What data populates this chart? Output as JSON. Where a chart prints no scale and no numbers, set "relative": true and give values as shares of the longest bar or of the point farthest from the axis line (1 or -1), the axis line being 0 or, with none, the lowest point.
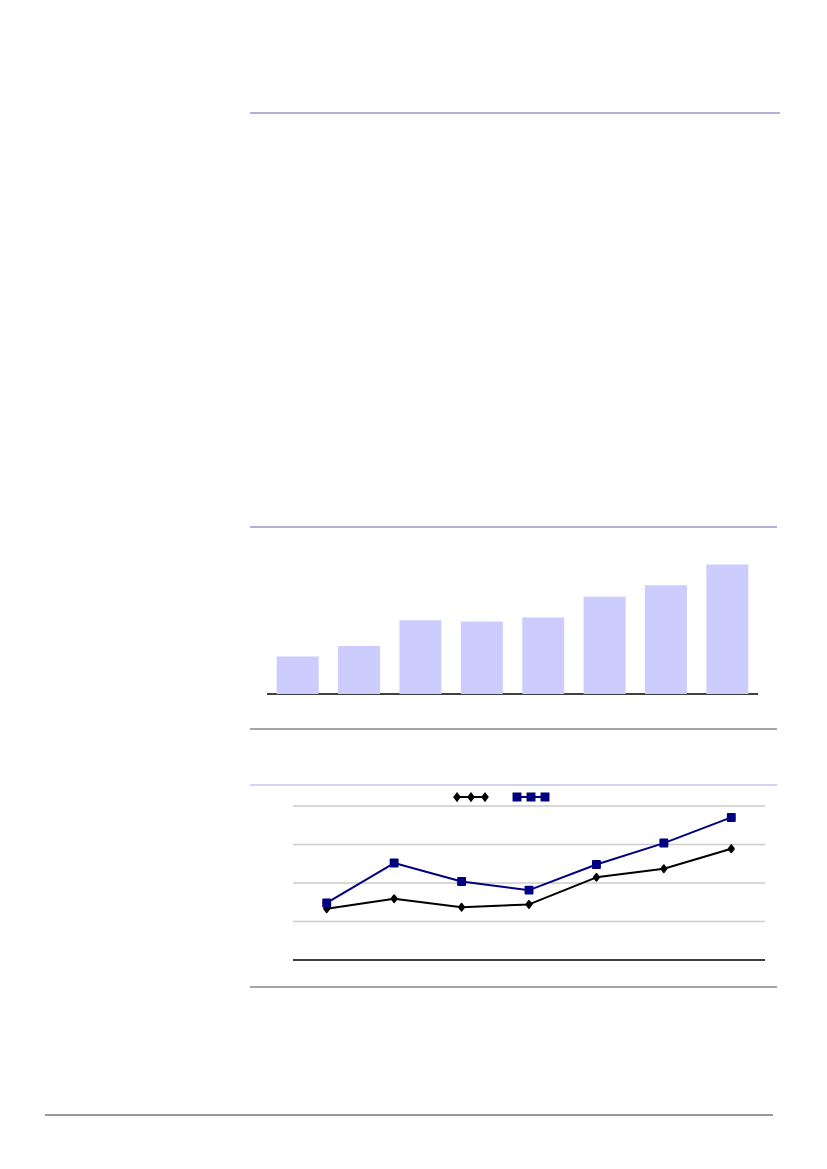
{
  "chart_data": [
    {
      "type": "bar",
      "relative": true,
      "categories": [
        null,
        null,
        null,
        null,
        null,
        null,
        null,
        null
      ],
      "values": [
        0.29,
        0.37,
        0.57,
        0.56,
        0.59,
        0.75,
        0.84,
        1.0
      ],
      "color": "#ccccff"
    },
    {
      "type": "line",
      "relative": true,
      "categories": [
        null,
        null,
        null,
        null,
        null,
        null,
        null
      ],
      "grid": "y",
      "series": [
        {
          "color": "#000000",
          "marker": "diamond",
          "values": [
            0.36,
            0.43,
            0.37,
            0.39,
            0.58,
            0.64,
            0.78
          ]
        },
        {
          "color": "#000080",
          "marker": "square",
          "values": [
            0.4,
            0.68,
            0.55,
            0.49,
            0.67,
            0.82,
            1.0
          ]
        }
      ]
    }
  ]
}
